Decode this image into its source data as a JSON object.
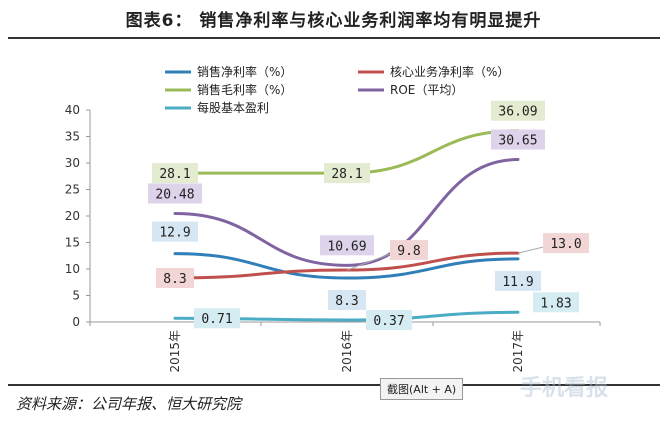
{
  "header": {
    "title": "图表6：  销售净利率与核心业务利润率均有明显提升"
  },
  "footer": {
    "source": "资料来源：公司年报、恒大研究院"
  },
  "overlay": {
    "tooltip": "截图(Alt + A)",
    "watermark": "手机看报"
  },
  "chart_data": {
    "type": "line",
    "x": [
      "2015年",
      "2016年",
      "2017年"
    ],
    "ylim": [
      0,
      40
    ],
    "yticks": [
      0,
      5,
      10,
      15,
      20,
      25,
      30,
      35,
      40
    ],
    "grid": false,
    "legend_position": "top",
    "series": [
      {
        "name": "销售净利率（%）",
        "color": "#2f7fb8",
        "values": [
          12.9,
          8.3,
          11.9
        ],
        "labels": [
          "12.9",
          "8.3",
          "11.9"
        ],
        "label_bg": "#d6e6f3"
      },
      {
        "name": "核心业务净利率（%）",
        "color": "#c0504d",
        "values": [
          8.3,
          9.8,
          13.0
        ],
        "labels": [
          "8.3",
          "9.8",
          "13.0"
        ],
        "label_bg": "#f2d6d6"
      },
      {
        "name": "销售毛利率（%）",
        "color": "#9bbb59",
        "values": [
          28.1,
          28.1,
          36.09
        ],
        "labels": [
          "28.1",
          "28.1",
          "36.09"
        ],
        "label_bg": "#e3ecd0"
      },
      {
        "name": "ROE（平均）",
        "color": "#8064a2",
        "values": [
          20.48,
          10.69,
          30.65
        ],
        "labels": [
          "20.48",
          "10.69",
          "30.65"
        ],
        "label_bg": "#ddd3ea"
      },
      {
        "name": "每股基本盈利",
        "color": "#4bacc6",
        "values": [
          0.71,
          0.37,
          1.83
        ],
        "labels": [
          "0.71",
          "0.37",
          "1.83"
        ],
        "label_bg": "#d4ecf2"
      }
    ]
  }
}
